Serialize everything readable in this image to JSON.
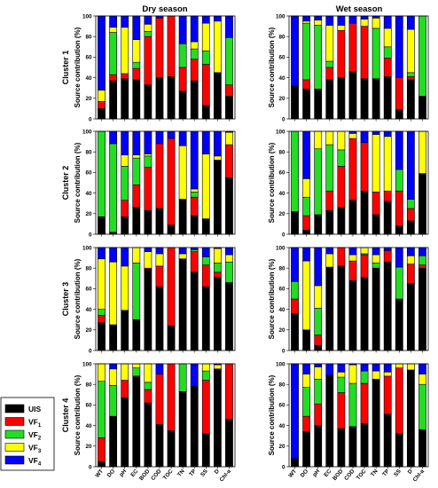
{
  "titles": {
    "dry": "Dry season",
    "wet": "Wet season",
    "ylabel": "Source contribution (%)",
    "clusters": [
      "Cluster 1",
      "Cluster 2",
      "Cluster 3",
      "Cluster 4"
    ]
  },
  "legend": {
    "items": [
      {
        "label": "UIS",
        "sub": "",
        "color": "#000000"
      },
      {
        "label": "VF",
        "sub": "1",
        "color": "#ff0000"
      },
      {
        "label": "VF",
        "sub": "2",
        "color": "#22dd22"
      },
      {
        "label": "VF",
        "sub": "3",
        "color": "#ffff00"
      },
      {
        "label": "VF",
        "sub": "4",
        "color": "#0000ff"
      }
    ]
  },
  "chart_data": {
    "type": "bar",
    "stacked": true,
    "categories": [
      "WT",
      "DO",
      "pH",
      "EC",
      "BOD",
      "COD",
      "TOC",
      "TN",
      "TP",
      "SS",
      "D",
      "Chl-a"
    ],
    "series_names": [
      "UIS",
      "VF1",
      "VF2",
      "VF3",
      "VF4"
    ],
    "colors": [
      "#000000",
      "#ff0000",
      "#22dd22",
      "#ffff00",
      "#0000ff"
    ],
    "ylim": [
      0,
      100
    ],
    "yticks": [
      0,
      20,
      40,
      60,
      80,
      100
    ],
    "panels": [
      {
        "cluster": "Cluster 1",
        "season": "Dry season",
        "values": [
          [
            10,
            7,
            0,
            11,
            72
          ],
          [
            37,
            6,
            41,
            5,
            11
          ],
          [
            39,
            5,
            0,
            45,
            11
          ],
          [
            38,
            11,
            6,
            22,
            23
          ],
          [
            33,
            47,
            5,
            7,
            8
          ],
          [
            40,
            58,
            0,
            0,
            2
          ],
          [
            41,
            59,
            0,
            0,
            0
          ],
          [
            27,
            23,
            23,
            0,
            27
          ],
          [
            37,
            21,
            10,
            7,
            25
          ],
          [
            13,
            40,
            13,
            27,
            7
          ],
          [
            45,
            0,
            0,
            50,
            5
          ],
          [
            22,
            11,
            46,
            0,
            21
          ]
        ]
      },
      {
        "cluster": "Cluster 1",
        "season": "Wet season",
        "values": [
          [
            32,
            0,
            0,
            0,
            68
          ],
          [
            29,
            9,
            55,
            2,
            5
          ],
          [
            29,
            0,
            62,
            5,
            4
          ],
          [
            38,
            12,
            6,
            35,
            9
          ],
          [
            40,
            46,
            0,
            5,
            9
          ],
          [
            46,
            47,
            0,
            0,
            7
          ],
          [
            39,
            51,
            0,
            7,
            3
          ],
          [
            39,
            0,
            49,
            10,
            2
          ],
          [
            41,
            18,
            11,
            18,
            12
          ],
          [
            9,
            31,
            0,
            0,
            60
          ],
          [
            38,
            3,
            4,
            42,
            13
          ],
          [
            22,
            0,
            78,
            0,
            0
          ]
        ]
      },
      {
        "cluster": "Cluster 2",
        "season": "Dry season",
        "values": [
          [
            17,
            0,
            83,
            0,
            0
          ],
          [
            2,
            0,
            86,
            0,
            12
          ],
          [
            17,
            16,
            33,
            11,
            23
          ],
          [
            26,
            22,
            26,
            3,
            23
          ],
          [
            23,
            42,
            11,
            2,
            22
          ],
          [
            25,
            63,
            0,
            0,
            12
          ],
          [
            9,
            84,
            0,
            0,
            7
          ],
          [
            34,
            0,
            0,
            52,
            14
          ],
          [
            18,
            18,
            5,
            3,
            56
          ],
          [
            15,
            0,
            0,
            63,
            22
          ],
          [
            72,
            0,
            0,
            4,
            24
          ],
          [
            55,
            32,
            0,
            12,
            1
          ]
        ]
      },
      {
        "cluster": "Cluster 2",
        "season": "Wet season",
        "values": [
          [
            22,
            0,
            78,
            0,
            0
          ],
          [
            4,
            14,
            18,
            18,
            46
          ],
          [
            19,
            0,
            64,
            17,
            0
          ],
          [
            23,
            19,
            45,
            13,
            0
          ],
          [
            26,
            40,
            16,
            18,
            0
          ],
          [
            33,
            60,
            0,
            5,
            2
          ],
          [
            42,
            47,
            0,
            0,
            11
          ],
          [
            19,
            22,
            0,
            56,
            3
          ],
          [
            32,
            10,
            0,
            53,
            5
          ],
          [
            8,
            34,
            21,
            0,
            37
          ],
          [
            13,
            12,
            9,
            0,
            66
          ],
          [
            59,
            0,
            0,
            41,
            0
          ]
        ]
      },
      {
        "cluster": "Cluster 3",
        "season": "Dry season",
        "values": [
          [
            27,
            7,
            6,
            49,
            11
          ],
          [
            25,
            0,
            0,
            61,
            14
          ],
          [
            39,
            0,
            0,
            43,
            18
          ],
          [
            30,
            0,
            55,
            15,
            0
          ],
          [
            79,
            1,
            0,
            16,
            4
          ],
          [
            62,
            20,
            0,
            12,
            6
          ],
          [
            24,
            76,
            0,
            0,
            0
          ],
          [
            89,
            0,
            0,
            5,
            6
          ],
          [
            76,
            20,
            2,
            0,
            2
          ],
          [
            62,
            21,
            8,
            0,
            9
          ],
          [
            71,
            5,
            9,
            14,
            1
          ],
          [
            66,
            0,
            20,
            7,
            7
          ]
        ]
      },
      {
        "cluster": "Cluster 3",
        "season": "Wet season",
        "values": [
          [
            36,
            14,
            17,
            0,
            33
          ],
          [
            20,
            0,
            0,
            67,
            13
          ],
          [
            5,
            10,
            26,
            22,
            37
          ],
          [
            81,
            0,
            0,
            13,
            6
          ],
          [
            82,
            18,
            0,
            0,
            0
          ],
          [
            68,
            19,
            0,
            6,
            7
          ],
          [
            71,
            22,
            1,
            6,
            0
          ],
          [
            80,
            0,
            5,
            8,
            7
          ],
          [
            86,
            11,
            0,
            0,
            3
          ],
          [
            50,
            0,
            31,
            0,
            19
          ],
          [
            65,
            19,
            0,
            8,
            8
          ],
          [
            80,
            3,
            9,
            0,
            8
          ]
        ]
      },
      {
        "cluster": "Cluster 4",
        "season": "Dry season",
        "values": [
          [
            5,
            23,
            55,
            17,
            0
          ],
          [
            49,
            0,
            30,
            16,
            5
          ],
          [
            67,
            17,
            0,
            16,
            0
          ],
          [
            87,
            1,
            8,
            4,
            0
          ],
          [
            62,
            13,
            7,
            18,
            0
          ],
          [
            41,
            49,
            0,
            0,
            10
          ],
          [
            35,
            65,
            0,
            0,
            0
          ],
          [
            73,
            0,
            27,
            0,
            0
          ],
          [
            78,
            0,
            0,
            0,
            22
          ],
          [
            32,
            52,
            9,
            7,
            0
          ],
          [
            95,
            0,
            0,
            4,
            1
          ],
          [
            46,
            54,
            0,
            0,
            0
          ]
        ]
      },
      {
        "cluster": "Cluster 4",
        "season": "Wet season",
        "values": [
          [
            8,
            0,
            0,
            0,
            92
          ],
          [
            34,
            15,
            28,
            13,
            10
          ],
          [
            40,
            21,
            24,
            12,
            3
          ],
          [
            89,
            0,
            0,
            0,
            11
          ],
          [
            37,
            35,
            15,
            5,
            8
          ],
          [
            39,
            0,
            42,
            18,
            1
          ],
          [
            42,
            39,
            12,
            0,
            7
          ],
          [
            85,
            0,
            0,
            8,
            7
          ],
          [
            51,
            37,
            0,
            4,
            8
          ],
          [
            32,
            64,
            0,
            4,
            0
          ],
          [
            94,
            0,
            0,
            6,
            0
          ],
          [
            36,
            0,
            44,
            10,
            10
          ]
        ]
      }
    ]
  }
}
